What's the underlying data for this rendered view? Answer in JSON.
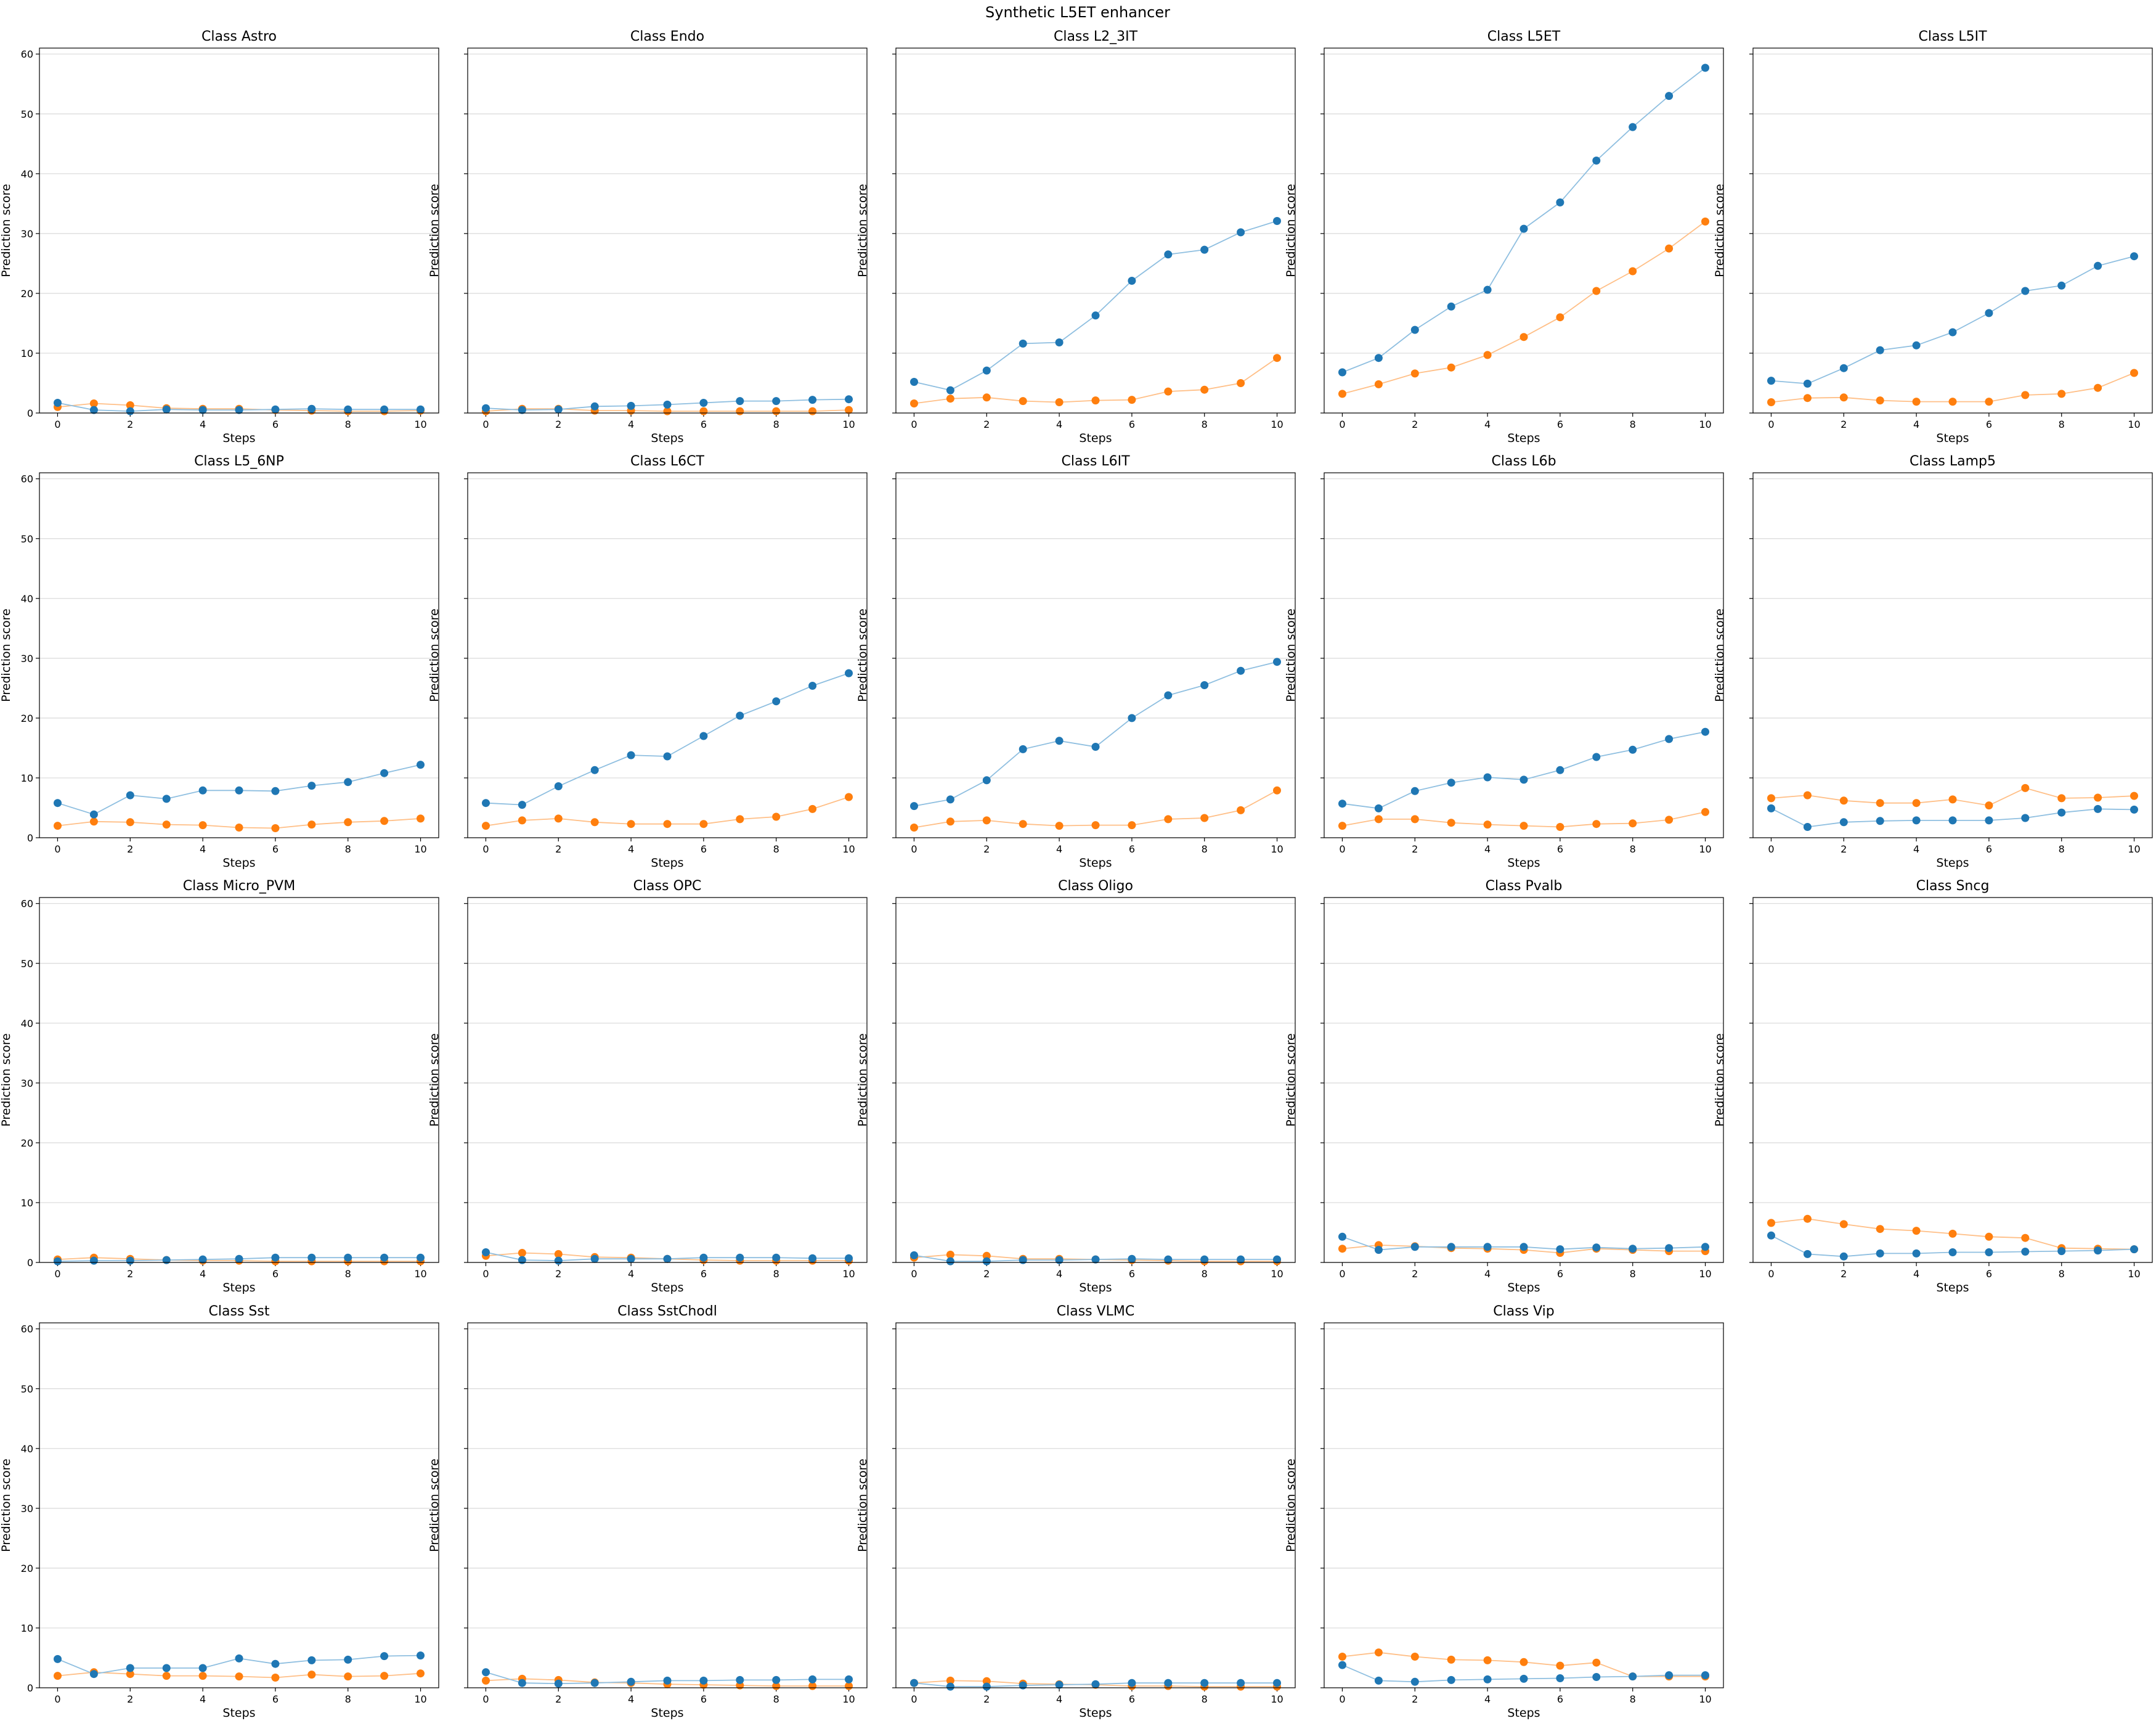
{
  "figure_title": "Synthetic L5ET enhancer",
  "colors": {
    "series_a": "#1f77b4",
    "series_b": "#ff7f0e",
    "series_a_line": "#8fbfe0",
    "series_b_line": "#ffbf87",
    "grid": "#d9d9d9"
  },
  "chart_data": [
    {
      "type": "line",
      "title": "Class Astro",
      "xlabel": "Steps",
      "ylabel": "Prediction score",
      "x": [
        0,
        1,
        2,
        3,
        4,
        5,
        6,
        7,
        8,
        9,
        10
      ],
      "ylim": [
        0,
        61
      ],
      "grid": "y",
      "series": [
        {
          "values": [
            1.7,
            0.5,
            0.3,
            0.6,
            0.5,
            0.5,
            0.6,
            0.7,
            0.6,
            0.6,
            0.6
          ]
        },
        {
          "values": [
            1.0,
            1.6,
            1.3,
            0.8,
            0.7,
            0.7,
            0.5,
            0.4,
            0.3,
            0.3,
            0.4
          ]
        }
      ]
    },
    {
      "type": "line",
      "title": "Class Endo",
      "xlabel": "Steps",
      "ylabel": "Prediction score",
      "x": [
        0,
        1,
        2,
        3,
        4,
        5,
        6,
        7,
        8,
        9,
        10
      ],
      "ylim": [
        0,
        61
      ],
      "grid": "y",
      "series": [
        {
          "values": [
            0.8,
            0.5,
            0.6,
            1.1,
            1.2,
            1.4,
            1.7,
            2.0,
            2.0,
            2.2,
            2.3
          ]
        },
        {
          "values": [
            0.3,
            0.7,
            0.7,
            0.4,
            0.4,
            0.3,
            0.3,
            0.3,
            0.3,
            0.3,
            0.5
          ]
        }
      ]
    },
    {
      "type": "line",
      "title": "Class L2_3IT",
      "xlabel": "Steps",
      "ylabel": "Prediction score",
      "x": [
        0,
        1,
        2,
        3,
        4,
        5,
        6,
        7,
        8,
        9,
        10
      ],
      "ylim": [
        0,
        61
      ],
      "grid": "y",
      "series": [
        {
          "values": [
            5.2,
            3.8,
            7.1,
            11.6,
            11.8,
            16.3,
            22.1,
            26.5,
            27.3,
            30.2,
            32.1
          ]
        },
        {
          "values": [
            1.6,
            2.4,
            2.6,
            2.0,
            1.8,
            2.1,
            2.2,
            3.6,
            3.9,
            5.0,
            9.2
          ]
        }
      ]
    },
    {
      "type": "line",
      "title": "Class L5ET",
      "xlabel": "Steps",
      "ylabel": "Prediction score",
      "x": [
        0,
        1,
        2,
        3,
        4,
        5,
        6,
        7,
        8,
        9,
        10
      ],
      "ylim": [
        0,
        61
      ],
      "grid": "y",
      "series": [
        {
          "values": [
            6.8,
            9.2,
            13.9,
            17.8,
            20.6,
            30.8,
            35.2,
            42.2,
            47.8,
            53.0,
            57.7
          ]
        },
        {
          "values": [
            3.2,
            4.8,
            6.6,
            7.6,
            9.7,
            12.7,
            16.0,
            20.4,
            23.7,
            27.5,
            32.0
          ]
        }
      ]
    },
    {
      "type": "line",
      "title": "Class L5IT",
      "xlabel": "Steps",
      "ylabel": "Prediction score",
      "x": [
        0,
        1,
        2,
        3,
        4,
        5,
        6,
        7,
        8,
        9,
        10
      ],
      "ylim": [
        0,
        61
      ],
      "grid": "y",
      "series": [
        {
          "values": [
            5.4,
            4.9,
            7.5,
            10.5,
            11.3,
            13.5,
            16.7,
            20.4,
            21.3,
            24.6,
            26.2
          ]
        },
        {
          "values": [
            1.8,
            2.5,
            2.6,
            2.1,
            1.9,
            1.9,
            1.9,
            3.0,
            3.2,
            4.2,
            6.7
          ]
        }
      ]
    },
    {
      "type": "line",
      "title": "Class L5_6NP",
      "xlabel": "Steps",
      "ylabel": "Prediction score",
      "x": [
        0,
        1,
        2,
        3,
        4,
        5,
        6,
        7,
        8,
        9,
        10
      ],
      "ylim": [
        0,
        61
      ],
      "grid": "y",
      "series": [
        {
          "values": [
            5.8,
            3.9,
            7.1,
            6.5,
            7.9,
            7.9,
            7.8,
            8.7,
            9.3,
            10.8,
            12.2
          ]
        },
        {
          "values": [
            2.0,
            2.7,
            2.6,
            2.2,
            2.1,
            1.7,
            1.6,
            2.2,
            2.6,
            2.8,
            3.2
          ]
        }
      ]
    },
    {
      "type": "line",
      "title": "Class L6CT",
      "xlabel": "Steps",
      "ylabel": "Prediction score",
      "x": [
        0,
        1,
        2,
        3,
        4,
        5,
        6,
        7,
        8,
        9,
        10
      ],
      "ylim": [
        0,
        61
      ],
      "grid": "y",
      "series": [
        {
          "values": [
            5.8,
            5.5,
            8.6,
            11.3,
            13.8,
            13.6,
            17.0,
            20.4,
            22.8,
            25.4,
            27.5
          ]
        },
        {
          "values": [
            2.0,
            2.9,
            3.2,
            2.6,
            2.3,
            2.3,
            2.3,
            3.1,
            3.5,
            4.8,
            6.8
          ]
        }
      ]
    },
    {
      "type": "line",
      "title": "Class L6IT",
      "xlabel": "Steps",
      "ylabel": "Prediction score",
      "x": [
        0,
        1,
        2,
        3,
        4,
        5,
        6,
        7,
        8,
        9,
        10
      ],
      "ylim": [
        0,
        61
      ],
      "grid": "y",
      "series": [
        {
          "values": [
            5.3,
            6.4,
            9.6,
            14.8,
            16.2,
            15.2,
            20.0,
            23.8,
            25.5,
            27.9,
            29.4
          ]
        },
        {
          "values": [
            1.7,
            2.7,
            2.9,
            2.3,
            2.0,
            2.1,
            2.1,
            3.1,
            3.3,
            4.6,
            7.9
          ]
        }
      ]
    },
    {
      "type": "line",
      "title": "Class L6b",
      "xlabel": "Steps",
      "ylabel": "Prediction score",
      "x": [
        0,
        1,
        2,
        3,
        4,
        5,
        6,
        7,
        8,
        9,
        10
      ],
      "ylim": [
        0,
        61
      ],
      "grid": "y",
      "series": [
        {
          "values": [
            5.7,
            4.9,
            7.8,
            9.2,
            10.1,
            9.7,
            11.3,
            13.5,
            14.7,
            16.5,
            17.7
          ]
        },
        {
          "values": [
            2.0,
            3.1,
            3.1,
            2.5,
            2.2,
            2.0,
            1.8,
            2.3,
            2.4,
            3.0,
            4.3
          ]
        }
      ]
    },
    {
      "type": "line",
      "title": "Class Lamp5",
      "xlabel": "Steps",
      "ylabel": "Prediction score",
      "x": [
        0,
        1,
        2,
        3,
        4,
        5,
        6,
        7,
        8,
        9,
        10
      ],
      "ylim": [
        0,
        61
      ],
      "grid": "y",
      "series": [
        {
          "values": [
            4.9,
            1.8,
            2.6,
            2.8,
            2.9,
            2.9,
            2.9,
            3.3,
            4.2,
            4.8,
            4.7
          ]
        },
        {
          "values": [
            6.6,
            7.1,
            6.2,
            5.8,
            5.8,
            6.4,
            5.4,
            8.3,
            6.6,
            6.7,
            7.0
          ]
        }
      ]
    },
    {
      "type": "line",
      "title": "Class Micro_PVM",
      "xlabel": "Steps",
      "ylabel": "Prediction score",
      "x": [
        0,
        1,
        2,
        3,
        4,
        5,
        6,
        7,
        8,
        9,
        10
      ],
      "ylim": [
        0,
        61
      ],
      "grid": "y",
      "series": [
        {
          "values": [
            0.2,
            0.3,
            0.3,
            0.4,
            0.5,
            0.6,
            0.8,
            0.8,
            0.8,
            0.8,
            0.8
          ]
        },
        {
          "values": [
            0.5,
            0.8,
            0.6,
            0.4,
            0.3,
            0.3,
            0.2,
            0.2,
            0.2,
            0.2,
            0.2
          ]
        }
      ]
    },
    {
      "type": "line",
      "title": "Class OPC",
      "xlabel": "Steps",
      "ylabel": "Prediction score",
      "x": [
        0,
        1,
        2,
        3,
        4,
        5,
        6,
        7,
        8,
        9,
        10
      ],
      "ylim": [
        0,
        61
      ],
      "grid": "y",
      "series": [
        {
          "values": [
            1.7,
            0.4,
            0.3,
            0.6,
            0.6,
            0.6,
            0.8,
            0.8,
            0.8,
            0.7,
            0.7
          ]
        },
        {
          "values": [
            1.1,
            1.6,
            1.4,
            0.9,
            0.8,
            0.6,
            0.4,
            0.3,
            0.3,
            0.3,
            0.3
          ]
        }
      ]
    },
    {
      "type": "line",
      "title": "Class Oligo",
      "xlabel": "Steps",
      "ylabel": "Prediction score",
      "x": [
        0,
        1,
        2,
        3,
        4,
        5,
        6,
        7,
        8,
        9,
        10
      ],
      "ylim": [
        0,
        61
      ],
      "grid": "y",
      "series": [
        {
          "values": [
            1.2,
            0.2,
            0.2,
            0.4,
            0.4,
            0.5,
            0.6,
            0.5,
            0.5,
            0.5,
            0.5
          ]
        },
        {
          "values": [
            0.8,
            1.3,
            1.1,
            0.6,
            0.6,
            0.5,
            0.4,
            0.3,
            0.2,
            0.2,
            0.2
          ]
        }
      ]
    },
    {
      "type": "line",
      "title": "Class Pvalb",
      "xlabel": "Steps",
      "ylabel": "Prediction score",
      "x": [
        0,
        1,
        2,
        3,
        4,
        5,
        6,
        7,
        8,
        9,
        10
      ],
      "ylim": [
        0,
        61
      ],
      "grid": "y",
      "series": [
        {
          "values": [
            4.3,
            2.1,
            2.6,
            2.6,
            2.6,
            2.6,
            2.2,
            2.5,
            2.3,
            2.4,
            2.6
          ]
        },
        {
          "values": [
            2.3,
            2.9,
            2.7,
            2.4,
            2.3,
            2.1,
            1.6,
            2.3,
            2.1,
            1.9,
            1.9
          ]
        }
      ]
    },
    {
      "type": "line",
      "title": "Class Sncg",
      "xlabel": "Steps",
      "ylabel": "Prediction score",
      "x": [
        0,
        1,
        2,
        3,
        4,
        5,
        6,
        7,
        8,
        9,
        10
      ],
      "ylim": [
        0,
        61
      ],
      "grid": "y",
      "series": [
        {
          "values": [
            4.5,
            1.4,
            1.0,
            1.5,
            1.5,
            1.7,
            1.7,
            1.8,
            1.9,
            2.0,
            2.2
          ]
        },
        {
          "values": [
            6.6,
            7.3,
            6.4,
            5.6,
            5.3,
            4.8,
            4.3,
            4.1,
            2.4,
            2.3,
            2.2
          ]
        }
      ]
    },
    {
      "type": "line",
      "title": "Class Sst",
      "xlabel": "Steps",
      "ylabel": "Prediction score",
      "x": [
        0,
        1,
        2,
        3,
        4,
        5,
        6,
        7,
        8,
        9,
        10
      ],
      "ylim": [
        0,
        61
      ],
      "grid": "y",
      "series": [
        {
          "values": [
            4.8,
            2.3,
            3.3,
            3.3,
            3.3,
            4.9,
            4.0,
            4.6,
            4.7,
            5.3,
            5.4
          ]
        },
        {
          "values": [
            2.0,
            2.6,
            2.3,
            2.0,
            2.0,
            1.9,
            1.7,
            2.2,
            1.9,
            2.0,
            2.4
          ]
        }
      ]
    },
    {
      "type": "line",
      "title": "Class SstChodl",
      "xlabel": "Steps",
      "ylabel": "Prediction score",
      "x": [
        0,
        1,
        2,
        3,
        4,
        5,
        6,
        7,
        8,
        9,
        10
      ],
      "ylim": [
        0,
        61
      ],
      "grid": "y",
      "series": [
        {
          "values": [
            2.6,
            0.8,
            0.7,
            0.8,
            1.0,
            1.2,
            1.2,
            1.3,
            1.3,
            1.4,
            1.4
          ]
        },
        {
          "values": [
            1.2,
            1.5,
            1.3,
            0.9,
            0.8,
            0.6,
            0.5,
            0.4,
            0.3,
            0.3,
            0.3
          ]
        }
      ]
    },
    {
      "type": "line",
      "title": "Class VLMC",
      "xlabel": "Steps",
      "ylabel": "Prediction score",
      "x": [
        0,
        1,
        2,
        3,
        4,
        5,
        6,
        7,
        8,
        9,
        10
      ],
      "ylim": [
        0,
        61
      ],
      "grid": "y",
      "series": [
        {
          "values": [
            0.8,
            0.2,
            0.2,
            0.4,
            0.5,
            0.6,
            0.8,
            0.8,
            0.8,
            0.8,
            0.8
          ]
        },
        {
          "values": [
            0.8,
            1.2,
            1.1,
            0.7,
            0.6,
            0.5,
            0.3,
            0.3,
            0.2,
            0.2,
            0.2
          ]
        }
      ]
    },
    {
      "type": "line",
      "title": "Class Vip",
      "xlabel": "Steps",
      "ylabel": "Prediction score",
      "x": [
        0,
        1,
        2,
        3,
        4,
        5,
        6,
        7,
        8,
        9,
        10
      ],
      "ylim": [
        0,
        61
      ],
      "grid": "y",
      "series": [
        {
          "values": [
            3.8,
            1.2,
            1.0,
            1.3,
            1.4,
            1.5,
            1.6,
            1.8,
            1.9,
            2.1,
            2.1
          ]
        },
        {
          "values": [
            5.2,
            5.9,
            5.2,
            4.7,
            4.6,
            4.3,
            3.7,
            4.2,
            1.9,
            1.9,
            1.9
          ]
        }
      ]
    }
  ]
}
